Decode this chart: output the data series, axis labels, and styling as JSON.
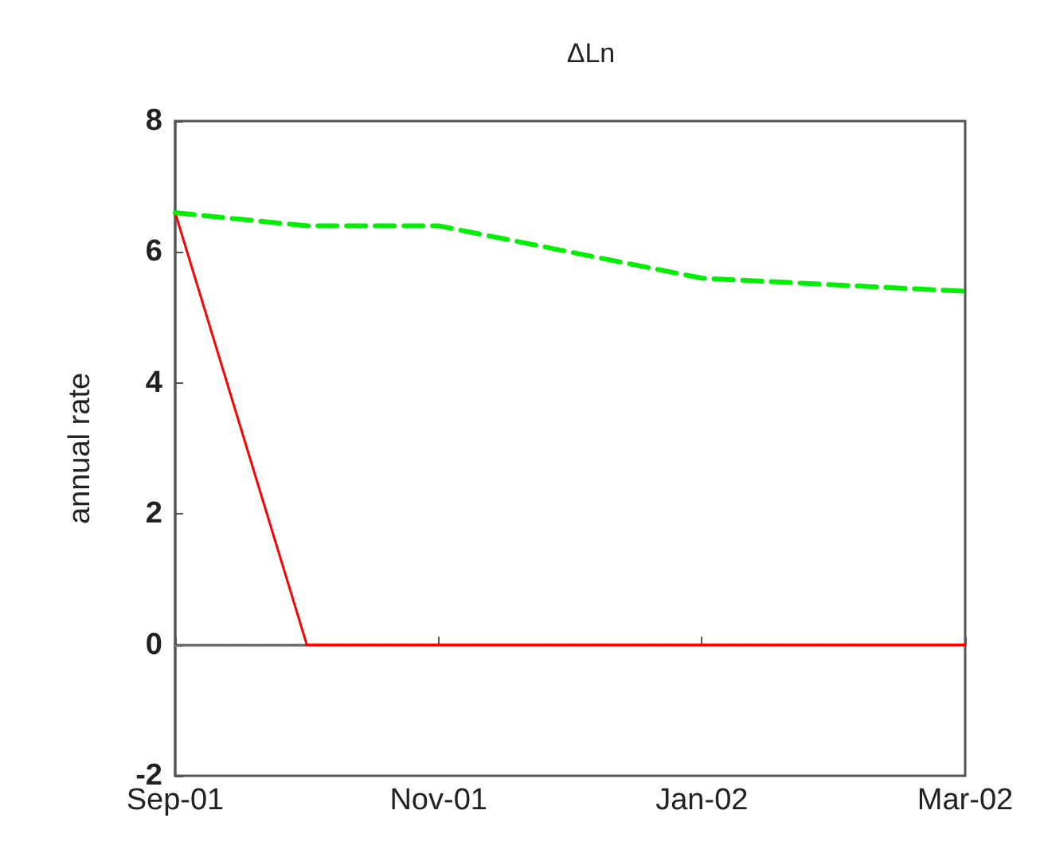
{
  "chart_data": {
    "type": "line",
    "title": "ΔLn",
    "ylabel": "annual rate",
    "categories": [
      "Sep-01",
      null,
      "Nov-01",
      null,
      "Jan-02",
      null,
      "Mar-02"
    ],
    "series": [
      {
        "color": "#ff0000",
        "values": [
          6.6,
          0,
          0,
          0,
          0,
          0,
          0
        ],
        "line_style": "solid"
      },
      {
        "color": "#00ee00",
        "values": [
          6.6,
          6.4,
          6.4,
          6.0,
          5.6,
          5.5,
          5.4
        ],
        "line_style": "dashed"
      }
    ],
    "ylim": [
      -2,
      8
    ],
    "yticks": [
      -2,
      0,
      2,
      4,
      6,
      8
    ],
    "grid": false,
    "marker": "none",
    "ref_lines": [
      {
        "axis": "y",
        "value": 0,
        "color": "#888888",
        "line_style": "dotted"
      }
    ]
  }
}
